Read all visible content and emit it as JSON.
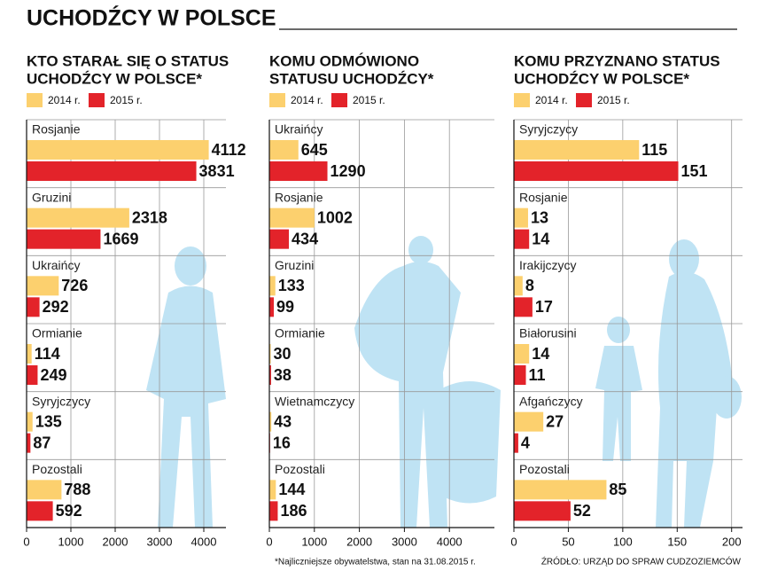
{
  "title": "UCHODŹCY W POLSCE",
  "footnote": "*Najliczniejsze obywatelstwa, stan na 31.08.2015 r.",
  "source": "ŹRÓDŁO: URZĄD DO SPRAW CUDZOZIEMCÓW",
  "chart_data": [
    {
      "type": "bar",
      "orientation": "horizontal",
      "title": [
        "KTO STARAŁ SIĘ O STATUS",
        "UCHODŹCY W POLSCE*"
      ],
      "categories": [
        "Rosjanie",
        "Gruzini",
        "Ukraińcy",
        "Ormianie",
        "Syryjczycy",
        "Pozostali"
      ],
      "series": [
        {
          "name": "2014 r.",
          "color": "#fcd06e",
          "values": [
            4112,
            2318,
            726,
            114,
            135,
            788
          ]
        },
        {
          "name": "2015 r.",
          "color": "#e3232a",
          "values": [
            3831,
            1669,
            292,
            249,
            87,
            592
          ]
        }
      ],
      "xlim": [
        0,
        4500
      ],
      "xticks": [
        0,
        1000,
        2000,
        3000,
        4000
      ],
      "grid": true
    },
    {
      "type": "bar",
      "orientation": "horizontal",
      "title": [
        "KOMU ODMÓWIONO",
        "STATUSU UCHODŹCY*"
      ],
      "categories": [
        "Ukraińcy",
        "Rosjanie",
        "Gruzini",
        "Ormianie",
        "Wietnamczycy",
        "Pozostali"
      ],
      "series": [
        {
          "name": "2014 r.",
          "color": "#fcd06e",
          "values": [
            645,
            1002,
            133,
            30,
            43,
            144
          ]
        },
        {
          "name": "2015 r.",
          "color": "#e3232a",
          "values": [
            1290,
            434,
            99,
            38,
            16,
            186
          ]
        }
      ],
      "xlim": [
        0,
        5000
      ],
      "xticks": [
        0,
        1000,
        2000,
        3000,
        4000
      ],
      "grid": true
    },
    {
      "type": "bar",
      "orientation": "horizontal",
      "title": [
        "KOMU PRZYZNANO STATUS",
        "UCHODŹCY W POLSCE*"
      ],
      "categories": [
        "Syryjczycy",
        "Rosjanie",
        "Irakijczycy",
        "Białorusini",
        "Afgańczycy",
        "Pozostali"
      ],
      "series": [
        {
          "name": "2014 r.",
          "color": "#fcd06e",
          "values": [
            115,
            13,
            8,
            14,
            27,
            85
          ]
        },
        {
          "name": "2015 r.",
          "color": "#e3232a",
          "values": [
            151,
            14,
            17,
            11,
            4,
            52
          ]
        }
      ],
      "xlim": [
        0,
        210
      ],
      "xticks": [
        0,
        50,
        100,
        150,
        200
      ],
      "grid": true
    }
  ]
}
